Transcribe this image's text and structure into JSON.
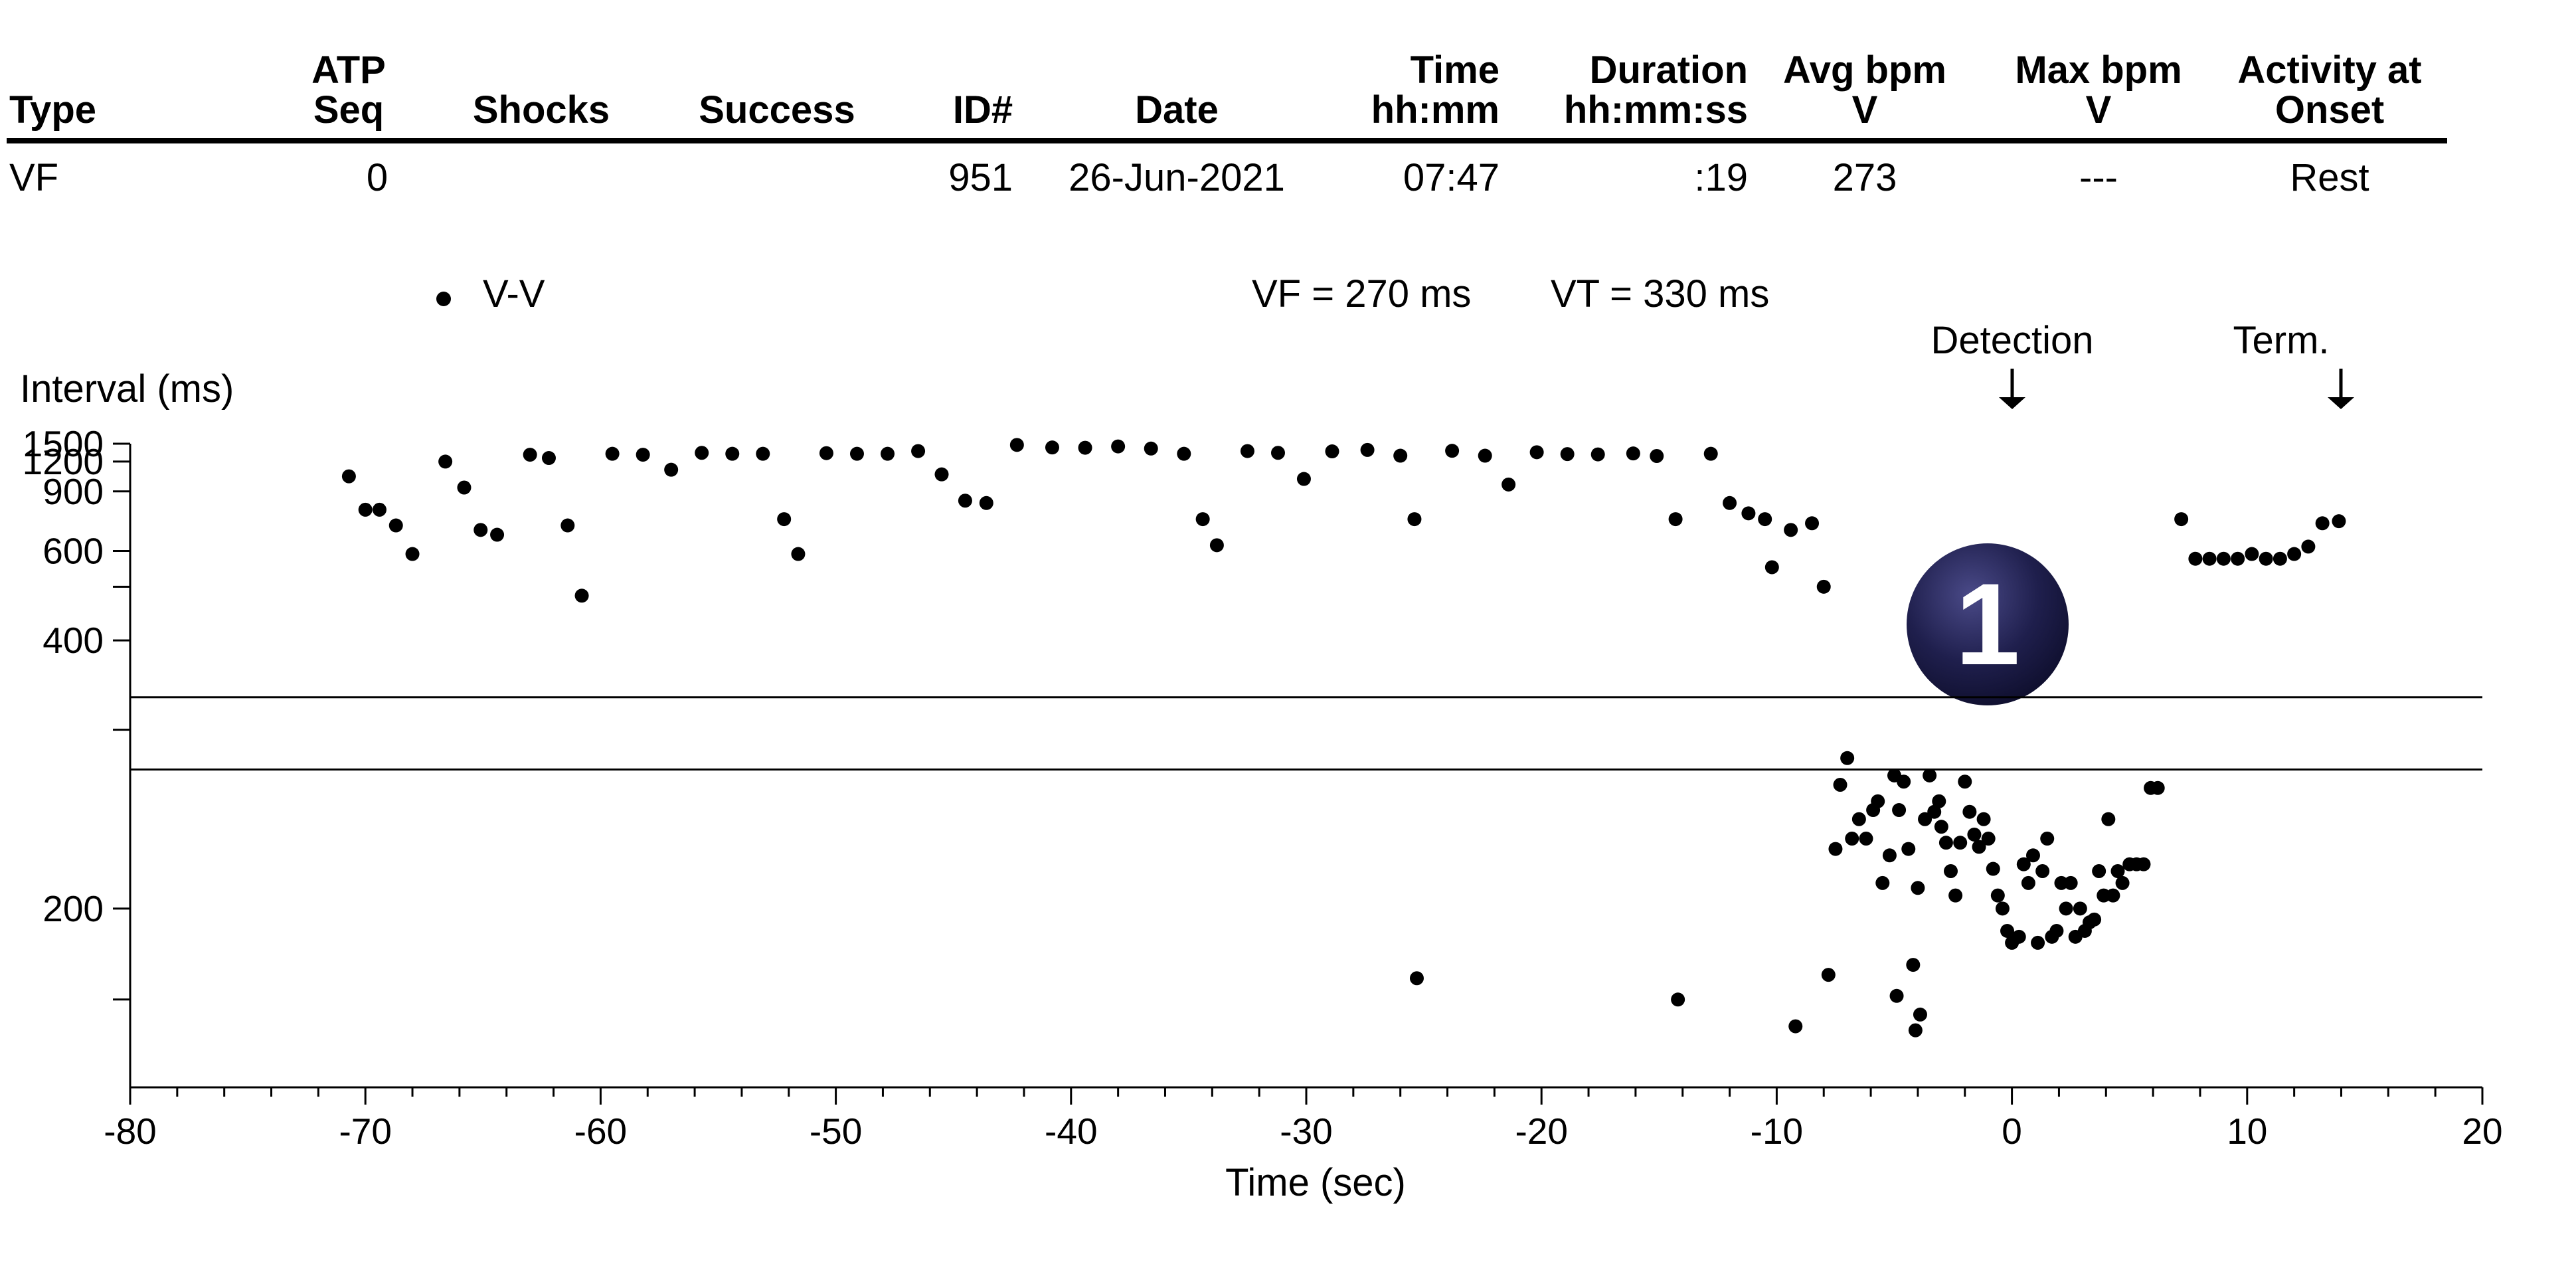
{
  "table": {
    "columns": [
      {
        "key": "type",
        "line1": "",
        "line2": "Type"
      },
      {
        "key": "atp",
        "line1": "ATP",
        "line2": "Seq"
      },
      {
        "key": "shocks",
        "line1": "",
        "line2": "Shocks"
      },
      {
        "key": "success",
        "line1": "",
        "line2": "Success"
      },
      {
        "key": "id",
        "line1": "",
        "line2": "ID#"
      },
      {
        "key": "date",
        "line1": "",
        "line2": "Date"
      },
      {
        "key": "time",
        "line1": "Time",
        "line2": "hh:mm"
      },
      {
        "key": "duration",
        "line1": "Duration",
        "line2": "hh:mm:ss"
      },
      {
        "key": "avg",
        "line1": "Avg bpm",
        "line2": "V"
      },
      {
        "key": "max",
        "line1": "Max bpm",
        "line2": "V"
      },
      {
        "key": "activity",
        "line1": "Activity at",
        "line2": "Onset"
      }
    ],
    "row": {
      "type": "VF",
      "atp": "0",
      "shocks": "",
      "success": "",
      "id": "951",
      "date": "26-Jun-2021",
      "time": "07:47",
      "duration": ":19",
      "avg": "273",
      "max": "---",
      "activity": "Rest"
    }
  },
  "legend": {
    "marker_label": "V-V"
  },
  "zones": {
    "vf_text": "VF = 270 ms",
    "vt_text": "VT = 330 ms",
    "vf_ms": 270,
    "vt_ms": 330
  },
  "markers": {
    "detection_label": "Detection",
    "detection_time": 0,
    "term_label": "Term.",
    "term_time": 14,
    "arrow_glyph": "↓"
  },
  "badge": {
    "number": "1",
    "color": "#1f1f4d"
  },
  "chart_data": {
    "type": "scatter",
    "title": "",
    "xlabel": "Time (sec)",
    "ylabel": "Interval (ms)",
    "xlim": [
      -80,
      20
    ],
    "x_ticks": [
      -80,
      -70,
      -60,
      -50,
      -40,
      -30,
      -20,
      -10,
      0,
      10,
      20
    ],
    "y_scale": "reciprocal",
    "ylim_ms": [
      150,
      1500
    ],
    "y_ticks": [
      {
        "value": 1500,
        "label": "1500"
      },
      {
        "value": 1200,
        "label": "1200"
      },
      {
        "value": 900,
        "label": "900"
      },
      {
        "value": 600,
        "label": "600"
      },
      {
        "value": 500,
        "label": ""
      },
      {
        "value": 400,
        "label": "400"
      },
      {
        "value": 300,
        "label": ""
      },
      {
        "value": 200,
        "label": "200"
      },
      {
        "value": 171,
        "label": ""
      }
    ],
    "series": [
      {
        "name": "V-V",
        "color": "#000000",
        "points": [
          [
            -70.7,
            1030
          ],
          [
            -70,
            780
          ],
          [
            -69.4,
            780
          ],
          [
            -68.7,
            700
          ],
          [
            -68,
            590
          ],
          [
            -66.6,
            1200
          ],
          [
            -65.8,
            930
          ],
          [
            -65.1,
            680
          ],
          [
            -64.4,
            660
          ],
          [
            -63,
            1300
          ],
          [
            -62.2,
            1250
          ],
          [
            -61.4,
            700
          ],
          [
            -60.8,
            480
          ],
          [
            -59.5,
            1315
          ],
          [
            -58.2,
            1300
          ],
          [
            -57,
            1100
          ],
          [
            -55.7,
            1330
          ],
          [
            -54.4,
            1315
          ],
          [
            -53.1,
            1315
          ],
          [
            -52.2,
            730
          ],
          [
            -51.6,
            590
          ],
          [
            -50.4,
            1325
          ],
          [
            -49.1,
            1315
          ],
          [
            -47.8,
            1315
          ],
          [
            -46.5,
            1360
          ],
          [
            -45.5,
            1050
          ],
          [
            -44.5,
            835
          ],
          [
            -43.6,
            820
          ],
          [
            -42.3,
            1475
          ],
          [
            -40.8,
            1425
          ],
          [
            -39.4,
            1420
          ],
          [
            -38,
            1445
          ],
          [
            -36.6,
            1405
          ],
          [
            -35.2,
            1315
          ],
          [
            -34.4,
            730
          ],
          [
            -33.8,
            620
          ],
          [
            -32.5,
            1360
          ],
          [
            -31.2,
            1330
          ],
          [
            -30.1,
            1005
          ],
          [
            -28.9,
            1355
          ],
          [
            -27.4,
            1380
          ],
          [
            -26,
            1285
          ],
          [
            -25.4,
            730
          ],
          [
            -25.3,
            177
          ],
          [
            -23.8,
            1365
          ],
          [
            -22.4,
            1285
          ],
          [
            -21.4,
            955
          ],
          [
            -20.2,
            1340
          ],
          [
            -18.9,
            1310
          ],
          [
            -17.6,
            1305
          ],
          [
            -16.1,
            1320
          ],
          [
            -15.1,
            1280
          ],
          [
            -14.3,
            730
          ],
          [
            -14.2,
            171
          ],
          [
            -12.8,
            1315
          ],
          [
            -12,
            820
          ],
          [
            -11.2,
            760
          ],
          [
            -10.5,
            730
          ],
          [
            -10.2,
            550
          ],
          [
            -9.4,
            680
          ],
          [
            -9.2,
            164
          ],
          [
            -8.5,
            710
          ],
          [
            -8,
            500
          ],
          [
            -7.8,
            178
          ],
          [
            -7.5,
            225
          ],
          [
            -7.3,
            260
          ],
          [
            -7,
            278
          ],
          [
            -6.8,
            230
          ],
          [
            -6.5,
            240
          ],
          [
            -6.2,
            230
          ],
          [
            -5.9,
            245
          ],
          [
            -5.7,
            250
          ],
          [
            -5.5,
            210
          ],
          [
            -5.2,
            222
          ],
          [
            -5,
            266
          ],
          [
            -4.9,
            172
          ],
          [
            -4.8,
            245
          ],
          [
            -4.6,
            262
          ],
          [
            -4.4,
            225
          ],
          [
            -4.2,
            181
          ],
          [
            -4.1,
            163
          ],
          [
            -4,
            208
          ],
          [
            -3.9,
            167
          ],
          [
            -3.7,
            240
          ],
          [
            -3.5,
            266
          ],
          [
            -3.3,
            244
          ],
          [
            -3.1,
            250
          ],
          [
            -3,
            236
          ],
          [
            -2.8,
            228
          ],
          [
            -2.6,
            215
          ],
          [
            -2.4,
            205
          ],
          [
            -2.2,
            228
          ],
          [
            -2,
            262
          ],
          [
            -1.8,
            244
          ],
          [
            -1.6,
            232
          ],
          [
            -1.4,
            226
          ],
          [
            -1.2,
            240
          ],
          [
            -1,
            230
          ],
          [
            -0.8,
            216
          ],
          [
            -0.6,
            205
          ],
          [
            -0.4,
            200
          ],
          [
            -0.2,
            192
          ],
          [
            0,
            188
          ],
          [
            0.3,
            190
          ],
          [
            0.5,
            218
          ],
          [
            0.7,
            210
          ],
          [
            0.9,
            222
          ],
          [
            1.1,
            188
          ],
          [
            1.3,
            215
          ],
          [
            1.5,
            230
          ],
          [
            1.7,
            190
          ],
          [
            1.9,
            192
          ],
          [
            2.1,
            210
          ],
          [
            2.3,
            200
          ],
          [
            2.5,
            210
          ],
          [
            2.7,
            190
          ],
          [
            2.9,
            200
          ],
          [
            3.1,
            192
          ],
          [
            3.3,
            195
          ],
          [
            3.5,
            196
          ],
          [
            3.7,
            215
          ],
          [
            3.9,
            205
          ],
          [
            4.1,
            240
          ],
          [
            4.3,
            205
          ],
          [
            4.5,
            215
          ],
          [
            4.7,
            210
          ],
          [
            5,
            218
          ],
          [
            5.3,
            218
          ],
          [
            5.6,
            218
          ],
          [
            5.9,
            258
          ],
          [
            6.2,
            258
          ],
          [
            7.2,
            730
          ],
          [
            7.8,
            575
          ],
          [
            8.4,
            575
          ],
          [
            9,
            575
          ],
          [
            9.6,
            575
          ],
          [
            10.2,
            590
          ],
          [
            10.8,
            575
          ],
          [
            11.4,
            575
          ],
          [
            12,
            590
          ],
          [
            12.6,
            615
          ],
          [
            13.2,
            710
          ],
          [
            13.9,
            720
          ]
        ]
      }
    ]
  }
}
